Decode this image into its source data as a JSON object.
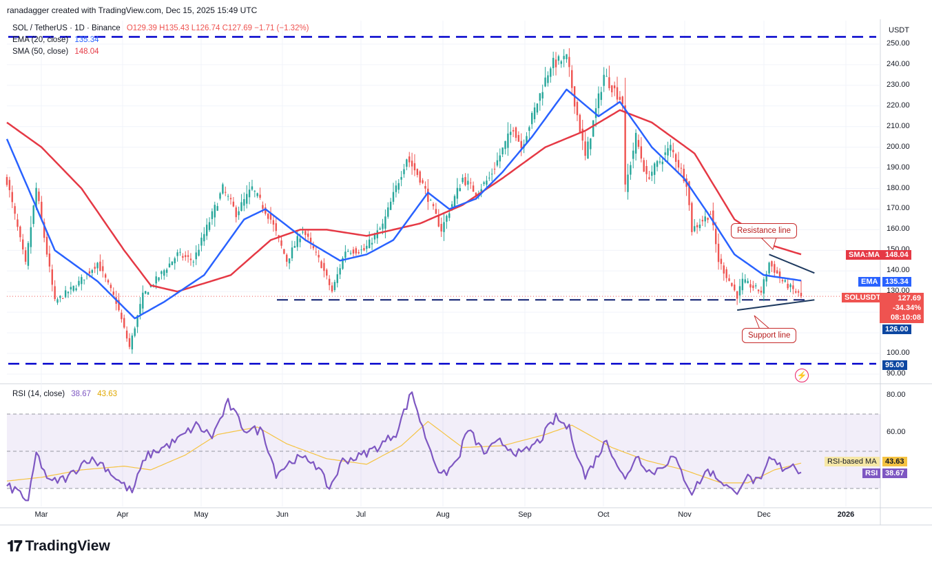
{
  "header": {
    "credit": "ranadagger created with TradingView.com, Dec 15, 2025 15:49 UTC",
    "currency": "USDT"
  },
  "legend": {
    "symbol": "SOL / TetherUS · 1D · Binance",
    "ohlc": "O129.39 H135.43 L126.74 C127.69 −1.71 (−1.32%)",
    "ema_label": "EMA (20, close)",
    "ema_value": "135.34",
    "sma_label": "SMA (50, close)",
    "sma_value": "148.04",
    "rsi_label": "RSI (14, close)",
    "rsi_value": "38.67",
    "rsi_ma_value": "43.63"
  },
  "price_tags": {
    "sma_label": "SMA:MA",
    "sma_value": "148.04",
    "ema_label": "EMA",
    "ema_value": "135.34",
    "sym_label": "SOLUSDT",
    "last": "127.69",
    "change": "-34.34%",
    "timer": "08:10:08",
    "support_level": "126.00",
    "floor_level": "95.00",
    "rsi_ma_label": "RSI-based MA",
    "rsi_ma_value": "43.63",
    "rsi_label": "RSI",
    "rsi_value": "38.67"
  },
  "annotations": {
    "resistance": "Resistance line",
    "support": "Support line"
  },
  "brand": "TradingView",
  "colors": {
    "up": "#26a69a",
    "down": "#ef5350",
    "ema": "#2962ff",
    "sma": "#e53945",
    "rsi": "#7e57c2",
    "rsi_ma": "#f5c342",
    "levels": "#0000cc",
    "trend": "#1e3a5f",
    "rsi_band": "rgba(126,87,194,0.10)"
  },
  "chart_data": [
    {
      "type": "candlestick",
      "title": "SOL / TetherUS · 1D · Binance",
      "x_ticks": [
        "Mar",
        "Apr",
        "May",
        "Jun",
        "Jul",
        "Aug",
        "Sep",
        "Oct",
        "Nov",
        "Dec",
        "2026"
      ],
      "y_ticks": [
        "250.00",
        "240.00",
        "230.00",
        "220.00",
        "210.00",
        "200.00",
        "190.00",
        "180.00",
        "170.00",
        "160.00",
        "150.00",
        "140.00",
        "130.00",
        "120.00",
        "110.00",
        "100.00",
        "90.00"
      ],
      "ylim": [
        86,
        256
      ],
      "date_range": [
        "2025-02-20",
        "2025-12-15"
      ],
      "anchors": [
        [
          "2025-02-20",
          184
        ],
        [
          "2025-02-27",
          143
        ],
        [
          "2025-03-03",
          180
        ],
        [
          "2025-03-10",
          125
        ],
        [
          "2025-03-18",
          133
        ],
        [
          "2025-03-26",
          144
        ],
        [
          "2025-04-02",
          125
        ],
        [
          "2025-04-07",
          103
        ],
        [
          "2025-04-12",
          128
        ],
        [
          "2025-04-25",
          148
        ],
        [
          "2025-05-01",
          145
        ],
        [
          "2025-05-12",
          180
        ],
        [
          "2025-05-17",
          168
        ],
        [
          "2025-05-23",
          180
        ],
        [
          "2025-05-30",
          165
        ],
        [
          "2025-06-05",
          145
        ],
        [
          "2025-06-11",
          160
        ],
        [
          "2025-06-18",
          143
        ],
        [
          "2025-06-22",
          130
        ],
        [
          "2025-06-27",
          150
        ],
        [
          "2025-07-04",
          150
        ],
        [
          "2025-07-11",
          162
        ],
        [
          "2025-07-20",
          195
        ],
        [
          "2025-07-25",
          185
        ],
        [
          "2025-08-02",
          160
        ],
        [
          "2025-08-10",
          185
        ],
        [
          "2025-08-15",
          178
        ],
        [
          "2025-08-20",
          185
        ],
        [
          "2025-08-29",
          210
        ],
        [
          "2025-09-01",
          200
        ],
        [
          "2025-09-12",
          240
        ],
        [
          "2025-09-18",
          243
        ],
        [
          "2025-09-25",
          195
        ],
        [
          "2025-10-02",
          235
        ],
        [
          "2025-10-09",
          222
        ],
        [
          "2025-10-10",
          180
        ],
        [
          "2025-10-14",
          205
        ],
        [
          "2025-10-18",
          185
        ],
        [
          "2025-10-27",
          200
        ],
        [
          "2025-11-02",
          183
        ],
        [
          "2025-11-04",
          160
        ],
        [
          "2025-11-11",
          168
        ],
        [
          "2025-11-14",
          145
        ],
        [
          "2025-11-21",
          128
        ],
        [
          "2025-11-23",
          135
        ],
        [
          "2025-11-30",
          130
        ],
        [
          "2025-12-03",
          144
        ],
        [
          "2025-12-08",
          135
        ],
        [
          "2025-12-15",
          127.69
        ]
      ],
      "last": {
        "open": 129.39,
        "high": 135.43,
        "low": 126.74,
        "close": 127.69,
        "change": -1.71,
        "change_pct": -1.32
      },
      "ema20_anchors": [
        [
          "2025-02-20",
          204
        ],
        [
          "2025-03-10",
          150
        ],
        [
          "2025-03-26",
          135
        ],
        [
          "2025-04-09",
          117
        ],
        [
          "2025-04-20",
          125
        ],
        [
          "2025-05-05",
          138
        ],
        [
          "2025-05-20",
          165
        ],
        [
          "2025-05-28",
          170
        ],
        [
          "2025-06-12",
          155
        ],
        [
          "2025-06-25",
          145
        ],
        [
          "2025-07-05",
          148
        ],
        [
          "2025-07-15",
          155
        ],
        [
          "2025-07-28",
          178
        ],
        [
          "2025-08-05",
          170
        ],
        [
          "2025-08-15",
          175
        ],
        [
          "2025-08-25",
          188
        ],
        [
          "2025-09-05",
          205
        ],
        [
          "2025-09-18",
          228
        ],
        [
          "2025-09-30",
          215
        ],
        [
          "2025-10-08",
          222
        ],
        [
          "2025-10-20",
          200
        ],
        [
          "2025-11-01",
          185
        ],
        [
          "2025-11-10",
          168
        ],
        [
          "2025-11-20",
          148
        ],
        [
          "2025-12-01",
          138
        ],
        [
          "2025-12-15",
          135.34
        ]
      ],
      "sma50_anchors": [
        [
          "2025-02-20",
          212
        ],
        [
          "2025-03-05",
          200
        ],
        [
          "2025-03-20",
          180
        ],
        [
          "2025-04-05",
          150
        ],
        [
          "2025-04-15",
          133
        ],
        [
          "2025-04-25",
          130
        ],
        [
          "2025-05-15",
          138
        ],
        [
          "2025-05-30",
          155
        ],
        [
          "2025-06-10",
          160
        ],
        [
          "2025-06-20",
          160
        ],
        [
          "2025-07-05",
          157
        ],
        [
          "2025-07-25",
          163
        ],
        [
          "2025-08-10",
          172
        ],
        [
          "2025-08-25",
          185
        ],
        [
          "2025-09-10",
          200
        ],
        [
          "2025-09-25",
          208
        ],
        [
          "2025-10-08",
          218
        ],
        [
          "2025-10-20",
          212
        ],
        [
          "2025-11-05",
          197
        ],
        [
          "2025-11-20",
          165
        ],
        [
          "2025-12-05",
          152
        ],
        [
          "2025-12-15",
          148.04
        ]
      ],
      "levels": [
        {
          "name": "top",
          "value": 253.5
        },
        {
          "name": "support",
          "value": 126.0
        },
        {
          "name": "floor",
          "value": 95.0
        }
      ],
      "trendlines": [
        {
          "name": "resistance",
          "from": [
            "2025-12-03",
            148
          ],
          "to": [
            "2025-12-20",
            139
          ]
        },
        {
          "name": "support",
          "from": [
            "2025-11-21",
            121
          ],
          "to": [
            "2025-12-20",
            126
          ]
        }
      ]
    },
    {
      "type": "line",
      "title": "RSI (14, close)",
      "y_ticks": [
        "80.00",
        "60.00"
      ],
      "ylim": [
        0,
        88
      ],
      "bands": [
        30,
        50,
        70
      ],
      "rsi_anchors": [
        [
          "2025-02-20",
          31
        ],
        [
          "2025-02-25",
          28
        ],
        [
          "2025-02-28",
          22
        ],
        [
          "2025-03-03",
          49
        ],
        [
          "2025-03-08",
          33
        ],
        [
          "2025-03-15",
          36
        ],
        [
          "2025-03-22",
          46
        ],
        [
          "2025-03-28",
          43
        ],
        [
          "2025-04-03",
          34
        ],
        [
          "2025-04-08",
          28
        ],
        [
          "2025-04-13",
          47
        ],
        [
          "2025-04-25",
          56
        ],
        [
          "2025-05-02",
          64
        ],
        [
          "2025-05-08",
          58
        ],
        [
          "2025-05-14",
          76
        ],
        [
          "2025-05-20",
          62
        ],
        [
          "2025-05-27",
          61
        ],
        [
          "2025-06-01",
          38
        ],
        [
          "2025-06-08",
          46
        ],
        [
          "2025-06-15",
          45
        ],
        [
          "2025-06-21",
          30
        ],
        [
          "2025-06-26",
          45
        ],
        [
          "2025-07-02",
          47
        ],
        [
          "2025-07-10",
          53
        ],
        [
          "2025-07-16",
          60
        ],
        [
          "2025-07-22",
          82
        ],
        [
          "2025-07-26",
          62
        ],
        [
          "2025-08-02",
          36
        ],
        [
          "2025-08-08",
          45
        ],
        [
          "2025-08-12",
          62
        ],
        [
          "2025-08-18",
          49
        ],
        [
          "2025-08-24",
          55
        ],
        [
          "2025-09-01",
          48
        ],
        [
          "2025-09-08",
          56
        ],
        [
          "2025-09-14",
          68
        ],
        [
          "2025-09-19",
          62
        ],
        [
          "2025-09-25",
          36
        ],
        [
          "2025-10-03",
          56
        ],
        [
          "2025-10-10",
          34
        ],
        [
          "2025-10-14",
          48
        ],
        [
          "2025-10-20",
          38
        ],
        [
          "2025-10-28",
          47
        ],
        [
          "2025-11-04",
          28
        ],
        [
          "2025-11-10",
          40
        ],
        [
          "2025-11-16",
          33
        ],
        [
          "2025-11-20",
          27
        ],
        [
          "2025-11-24",
          36
        ],
        [
          "2025-11-30",
          33
        ],
        [
          "2025-12-03",
          46
        ],
        [
          "2025-12-08",
          41
        ],
        [
          "2025-12-12",
          43
        ],
        [
          "2025-12-15",
          38.67
        ]
      ],
      "rsi_ma_anchors": [
        [
          "2025-02-20",
          34
        ],
        [
          "2025-03-05",
          36
        ],
        [
          "2025-03-20",
          40
        ],
        [
          "2025-04-05",
          42
        ],
        [
          "2025-04-15",
          40
        ],
        [
          "2025-04-28",
          48
        ],
        [
          "2025-05-10",
          59
        ],
        [
          "2025-05-25",
          63
        ],
        [
          "2025-06-05",
          54
        ],
        [
          "2025-06-20",
          46
        ],
        [
          "2025-07-05",
          43
        ],
        [
          "2025-07-18",
          53
        ],
        [
          "2025-07-28",
          66
        ],
        [
          "2025-08-10",
          52
        ],
        [
          "2025-08-25",
          53
        ],
        [
          "2025-09-10",
          59
        ],
        [
          "2025-09-20",
          64
        ],
        [
          "2025-10-05",
          52
        ],
        [
          "2025-10-18",
          45
        ],
        [
          "2025-11-01",
          40
        ],
        [
          "2025-11-15",
          33
        ],
        [
          "2025-11-25",
          33
        ],
        [
          "2025-12-05",
          40
        ],
        [
          "2025-12-15",
          43.63
        ]
      ]
    }
  ]
}
